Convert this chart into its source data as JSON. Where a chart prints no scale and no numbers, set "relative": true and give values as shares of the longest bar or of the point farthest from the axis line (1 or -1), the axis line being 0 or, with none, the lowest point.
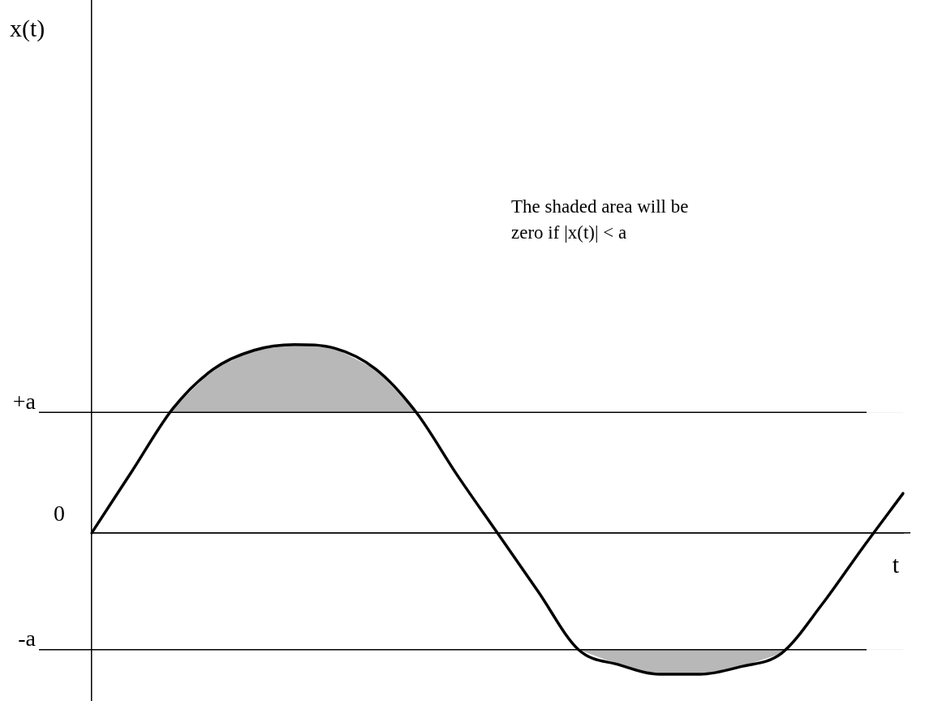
{
  "chart_data": {
    "type": "line",
    "relative": true,
    "xlabel": "t",
    "categories": [
      null,
      null,
      null,
      null,
      null,
      null,
      null,
      null,
      null,
      null,
      null,
      null,
      null,
      null,
      null,
      null,
      null,
      null,
      null,
      null,
      null
    ],
    "series": [
      {
        "color": "#000000",
        "values": [
          0,
          0.33,
          0.66,
          0.87,
          0.97,
          1,
          0.98,
          0.87,
          0.64,
          0.31,
          0,
          -0.31,
          -0.62,
          -0.7,
          -0.75,
          -0.75,
          -0.71,
          -0.64,
          -0.38,
          -0.08,
          0.21
        ]
      }
    ],
    "ref_lines": [
      {
        "axis": "y",
        "value": 0.64,
        "label": "+a",
        "color": "#000000"
      },
      {
        "axis": "y",
        "value": 0,
        "label": "0",
        "color": "#000000"
      },
      {
        "axis": "y",
        "value": -0.62,
        "label": "-a",
        "color": "#000000"
      }
    ],
    "annotations": [
      "x(t)",
      "The shaded area will be zero if |x(t)| < a"
    ],
    "grid": false,
    "legend": false,
    "marker": "none",
    "line_style": "solid"
  }
}
